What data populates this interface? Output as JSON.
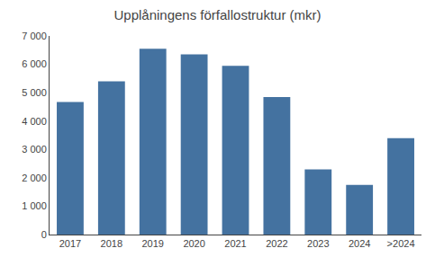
{
  "chart_data": {
    "type": "bar",
    "title": "Upplåningens förfallostruktur (mkr)",
    "categories": [
      "2017",
      "2018",
      "2019",
      "2020",
      "2021",
      "2022",
      "2023",
      "2024",
      ">2024"
    ],
    "values": [
      4670,
      5400,
      6550,
      6350,
      5950,
      4850,
      2300,
      1750,
      3400
    ],
    "color": "#4472a0",
    "ylim": [
      0,
      7000
    ],
    "yticks": [
      0,
      {
        "value": 1000,
        "label": "1 000"
      },
      {
        "value": 2000,
        "label": "2 000"
      },
      {
        "value": 3000,
        "label": "3 000"
      },
      {
        "value": 4000,
        "label": "4 000"
      },
      {
        "value": 5000,
        "label": "5 000"
      },
      {
        "value": 6000,
        "label": "6 000"
      },
      {
        "value": 7000,
        "label": "7 000"
      }
    ],
    "grid": false
  }
}
